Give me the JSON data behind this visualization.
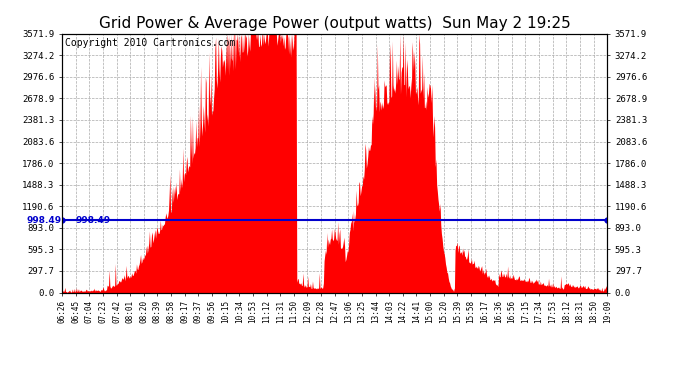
{
  "title": "Grid Power & Average Power (output watts)  Sun May 2 19:25",
  "copyright": "Copyright 2010 Cartronics.com",
  "ymax": 3571.9,
  "ymin": 0.0,
  "avg_line_value": 998.49,
  "yticks": [
    0.0,
    297.7,
    595.3,
    893.0,
    1190.6,
    1488.3,
    1786.0,
    2083.6,
    2381.3,
    2678.9,
    2976.6,
    3274.2,
    3571.9
  ],
  "xtick_labels": [
    "06:26",
    "06:45",
    "07:04",
    "07:23",
    "07:42",
    "08:01",
    "08:20",
    "08:39",
    "08:58",
    "09:17",
    "09:37",
    "09:56",
    "10:15",
    "10:34",
    "10:53",
    "11:12",
    "11:31",
    "11:50",
    "12:09",
    "12:28",
    "12:47",
    "13:06",
    "13:25",
    "13:44",
    "14:03",
    "14:22",
    "14:41",
    "15:00",
    "15:20",
    "15:39",
    "15:58",
    "16:17",
    "16:36",
    "16:56",
    "17:15",
    "17:34",
    "17:53",
    "18:12",
    "18:31",
    "18:50",
    "19:09"
  ],
  "background_color": "#ffffff",
  "grid_color": "#aaaaaa",
  "fill_color": "#ff0000",
  "line_color": "#0000cc",
  "title_fontsize": 11,
  "copyright_fontsize": 7
}
